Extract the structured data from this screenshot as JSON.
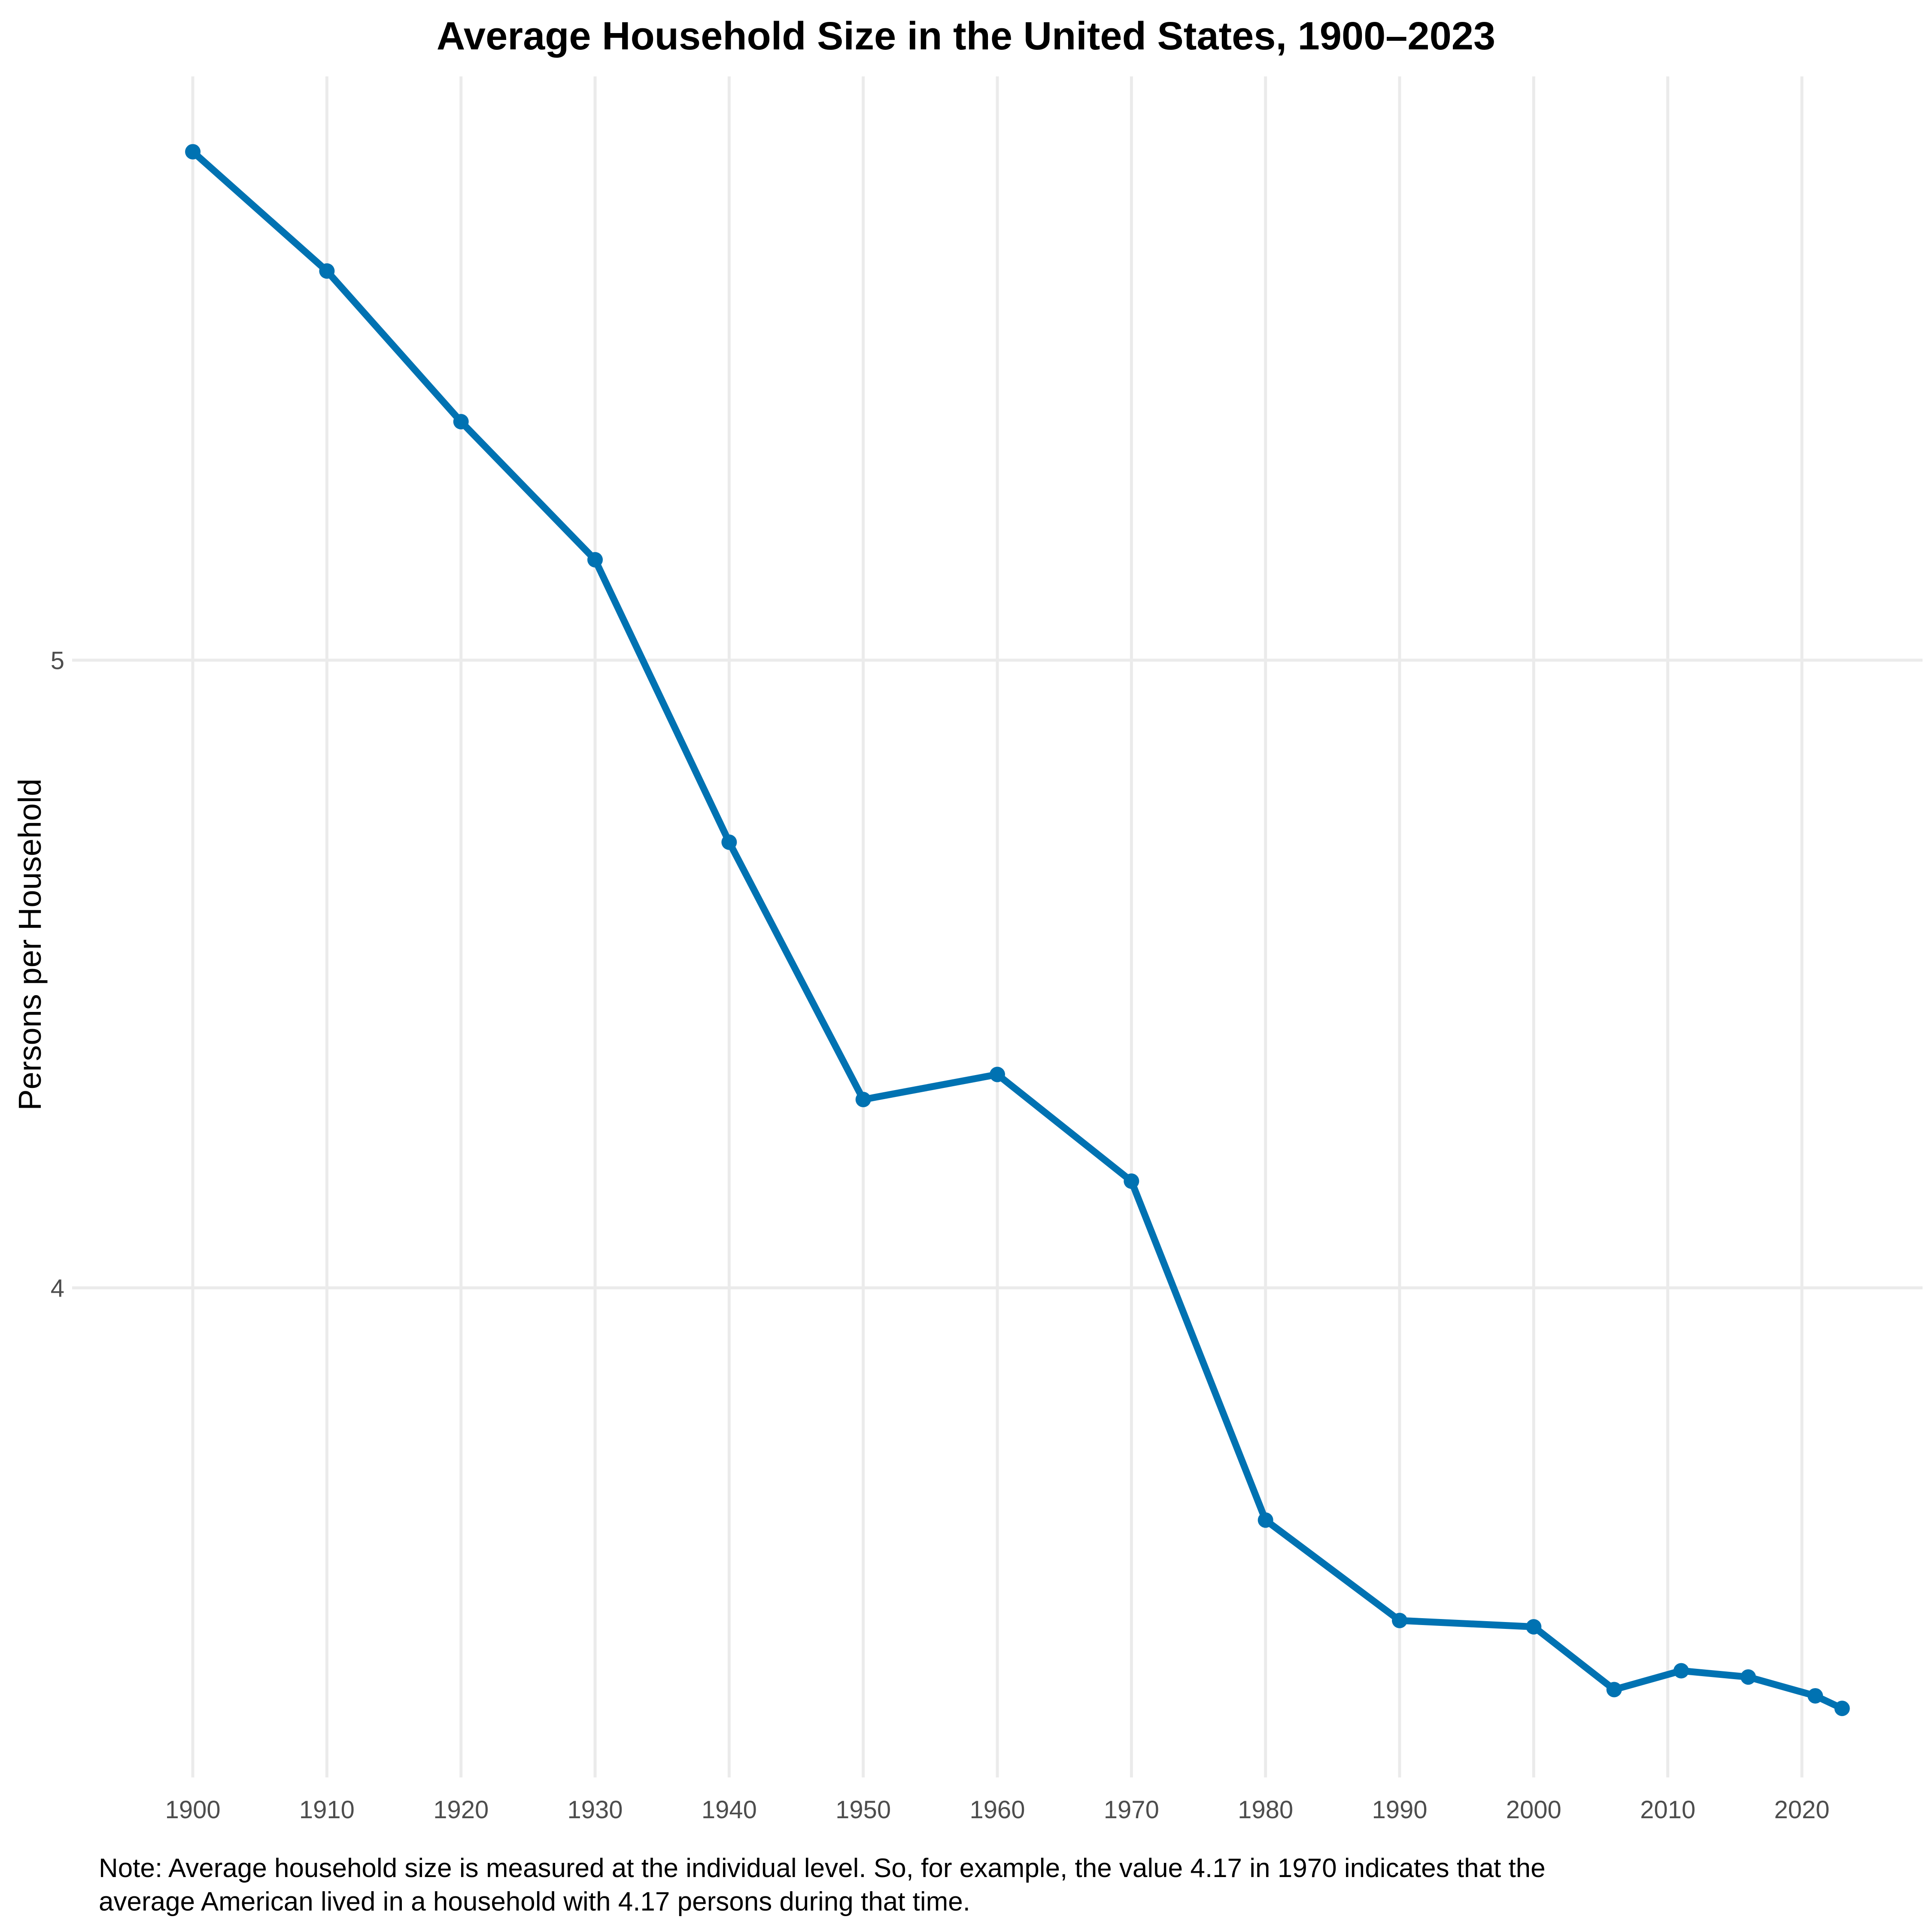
{
  "chart_data": {
    "type": "line",
    "title": "Average Household Size in the United States, 1900–2023",
    "xlabel": "",
    "ylabel": "Persons per Household",
    "x": [
      1900,
      1910,
      1920,
      1930,
      1940,
      1950,
      1960,
      1970,
      1980,
      1990,
      2000,
      2006,
      2011,
      2016,
      2021,
      2023
    ],
    "series": [
      {
        "values": [
          5.81,
          5.62,
          5.38,
          5.16,
          4.71,
          4.3,
          4.34,
          4.17,
          3.63,
          3.47,
          3.46,
          3.36,
          3.39,
          3.38,
          3.35,
          3.33
        ]
      }
    ],
    "xticks": [
      1900,
      1910,
      1920,
      1930,
      1940,
      1950,
      1960,
      1970,
      1980,
      1990,
      2000,
      2010,
      2020
    ],
    "yticks": [
      4,
      5
    ],
    "xlim": [
      1891,
      2029
    ],
    "ylim": [
      3.22,
      5.93
    ],
    "grid": true,
    "line_color": "#0072b2"
  },
  "note": {
    "line1": "Note: Average household size is measured at the individual level. So, for example, the value 4.17 in 1970 indicates that the",
    "line2": "average American lived in a household with 4.17 persons during that time."
  }
}
